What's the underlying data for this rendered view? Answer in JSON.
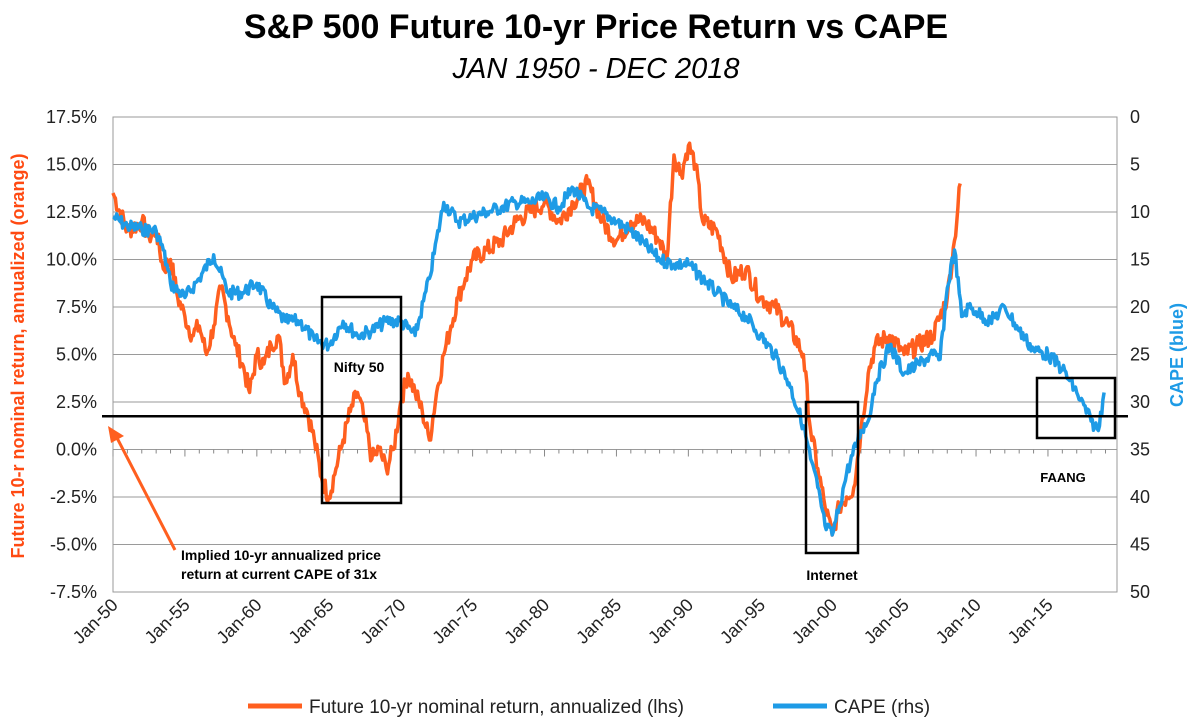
{
  "chart_data": {
    "type": "line",
    "title": "S&P 500 Future 10-yr Price Return vs CAPE",
    "subtitle": "JAN 1950 - DEC 2018",
    "ylabel_left": "Future 10-r nominal return, annualized (orange)",
    "ylabel_right": "CAPE (blue)",
    "ylim_left": [
      -7.5,
      17.5
    ],
    "ylim_right_inverted": [
      0,
      50
    ],
    "left_ticks": [
      "17.5%",
      "15.0%",
      "12.5%",
      "10.0%",
      "7.5%",
      "5.0%",
      "2.5%",
      "0.0%",
      "-2.5%",
      "-5.0%",
      "-7.5%"
    ],
    "right_ticks": [
      "0",
      "5",
      "10",
      "15",
      "20",
      "25",
      "30",
      "35",
      "40",
      "45",
      "50"
    ],
    "x_ticks": [
      "Jan-50",
      "Jan-55",
      "Jan-60",
      "Jan-65",
      "Jan-70",
      "Jan-75",
      "Jan-80",
      "Jan-85",
      "Jan-90",
      "Jan-95",
      "Jan-00",
      "Jan-05",
      "Jan-10",
      "Jan-15"
    ],
    "colors": {
      "return": "#FF5F1F",
      "cape": "#1E9BE6",
      "left_axis_label": "#FF4A12",
      "right_axis_label": "#1E9BE6"
    },
    "series": [
      {
        "name": "Future 10-yr nominal return, annualized (lhs)",
        "axis": "left",
        "color": "#FF5F1F",
        "x": [
          1950.0,
          1951.0,
          1952.0,
          1952.5,
          1953.0,
          1953.5,
          1954.0,
          1954.5,
          1955.0,
          1955.5,
          1956.0,
          1956.5,
          1957.0,
          1957.5,
          1958.0,
          1958.5,
          1959.0,
          1959.5,
          1960.0,
          1960.5,
          1961.0,
          1961.5,
          1962.0,
          1962.5,
          1963.0,
          1963.5,
          1964.0,
          1964.5,
          1965.0,
          1965.5,
          1966.0,
          1966.5,
          1967.0,
          1967.5,
          1968.0,
          1968.5,
          1969.0,
          1969.5,
          1970.0,
          1970.5,
          1971.0,
          1971.5,
          1972.0,
          1972.5,
          1973.0,
          1973.5,
          1974.0,
          1974.5,
          1975.0,
          1976.0,
          1977.0,
          1978.0,
          1979.0,
          1980.0,
          1981.0,
          1982.0,
          1983.0,
          1984.0,
          1985.0,
          1986.0,
          1987.0,
          1988.0,
          1988.5,
          1989.0,
          1989.5,
          1990.0,
          1990.5,
          1991.0,
          1992.0,
          1993.0,
          1994.0,
          1995.0,
          1996.0,
          1997.0,
          1998.0,
          1998.5,
          1999.0,
          1999.5,
          2000.0,
          2000.5,
          2001.0,
          2001.5,
          2002.0,
          2002.5,
          2003.0,
          2004.0,
          2005.0,
          2006.0,
          2007.0,
          2008.0,
          2008.5,
          2008.9
        ],
        "values": [
          13.5,
          11.5,
          12.0,
          11.2,
          11.5,
          9.5,
          10.0,
          8.0,
          7.0,
          6.0,
          6.5,
          5.0,
          6.5,
          8.5,
          7.0,
          5.5,
          4.5,
          3.0,
          5.0,
          4.5,
          5.5,
          6.0,
          3.5,
          5.0,
          3.0,
          2.0,
          0.5,
          -1.5,
          -2.5,
          -1.0,
          0.5,
          2.0,
          3.0,
          1.5,
          -0.5,
          0.0,
          -1.0,
          0.0,
          2.5,
          4.0,
          3.0,
          2.0,
          0.5,
          3.0,
          5.0,
          6.5,
          8.0,
          9.0,
          10.0,
          10.5,
          11.0,
          12.0,
          12.5,
          13.0,
          12.0,
          13.0,
          14.0,
          12.0,
          11.0,
          12.0,
          12.0,
          11.0,
          10.0,
          15.5,
          14.5,
          16.0,
          15.0,
          12.0,
          11.5,
          9.0,
          9.5,
          8.0,
          7.5,
          6.5,
          5.0,
          1.0,
          -1.0,
          -3.0,
          -4.5,
          -3.0,
          -2.5,
          -2.0,
          1.0,
          4.0,
          5.5,
          6.0,
          5.0,
          5.5,
          6.0,
          8.0,
          11.0,
          14.0
        ]
      },
      {
        "name": "CAPE (rhs)",
        "axis": "right",
        "color": "#1E9BE6",
        "x": [
          1950.0,
          1951.0,
          1952.0,
          1953.0,
          1953.5,
          1954.0,
          1955.0,
          1956.0,
          1957.0,
          1958.0,
          1959.0,
          1960.0,
          1961.0,
          1962.0,
          1963.0,
          1964.0,
          1965.0,
          1966.0,
          1967.0,
          1968.0,
          1969.0,
          1970.0,
          1971.0,
          1972.0,
          1973.0,
          1974.0,
          1975.0,
          1976.0,
          1977.0,
          1978.0,
          1979.0,
          1980.0,
          1981.0,
          1982.0,
          1983.0,
          1984.0,
          1985.0,
          1986.0,
          1987.0,
          1988.0,
          1989.0,
          1990.0,
          1991.0,
          1992.0,
          1993.0,
          1994.0,
          1995.0,
          1996.0,
          1997.0,
          1998.0,
          1998.5,
          1999.0,
          1999.5,
          2000.0,
          2000.5,
          2001.0,
          2002.0,
          2002.5,
          2003.0,
          2004.0,
          2005.0,
          2006.0,
          2007.0,
          2007.5,
          2008.0,
          2008.5,
          2009.0,
          2009.5,
          2010.0,
          2011.0,
          2012.0,
          2013.0,
          2014.0,
          2015.0,
          2016.0,
          2017.0,
          2018.0,
          2018.5,
          2018.9
        ],
        "values": [
          10.5,
          11.5,
          11.8,
          12.0,
          14.0,
          17.5,
          19.0,
          17.0,
          14.5,
          18.5,
          18.5,
          17.5,
          20.0,
          21.5,
          21.5,
          23.5,
          24.0,
          21.5,
          23.0,
          22.5,
          21.5,
          21.5,
          23.0,
          17.0,
          9.0,
          11.0,
          10.5,
          10.0,
          9.5,
          9.0,
          9.0,
          8.5,
          9.5,
          7.5,
          9.5,
          10.0,
          11.0,
          12.0,
          13.5,
          15.0,
          15.5,
          15.5,
          17.0,
          18.5,
          20.0,
          21.0,
          23.0,
          25.0,
          28.0,
          32.5,
          36.0,
          39.0,
          43.0,
          44.0,
          41.0,
          37.5,
          33.0,
          32.0,
          28.0,
          24.0,
          27.0,
          26.0,
          25.0,
          25.5,
          18.0,
          14.0,
          21.0,
          20.0,
          20.5,
          21.5,
          20.0,
          22.5,
          24.5,
          25.0,
          26.5,
          29.0,
          32.0,
          33.0,
          29.0
        ]
      }
    ],
    "annotations": {
      "nifty50": "Nifty 50",
      "internet": "Internet",
      "faang": "FAANG",
      "implied_line1": "Implied 10-yr annualized price",
      "implied_line2": "return at current CAPE of 31x",
      "implied_value": 1.75
    },
    "legend": [
      "Future 10-yr nominal return, annualized (lhs)",
      "CAPE (rhs)"
    ]
  }
}
